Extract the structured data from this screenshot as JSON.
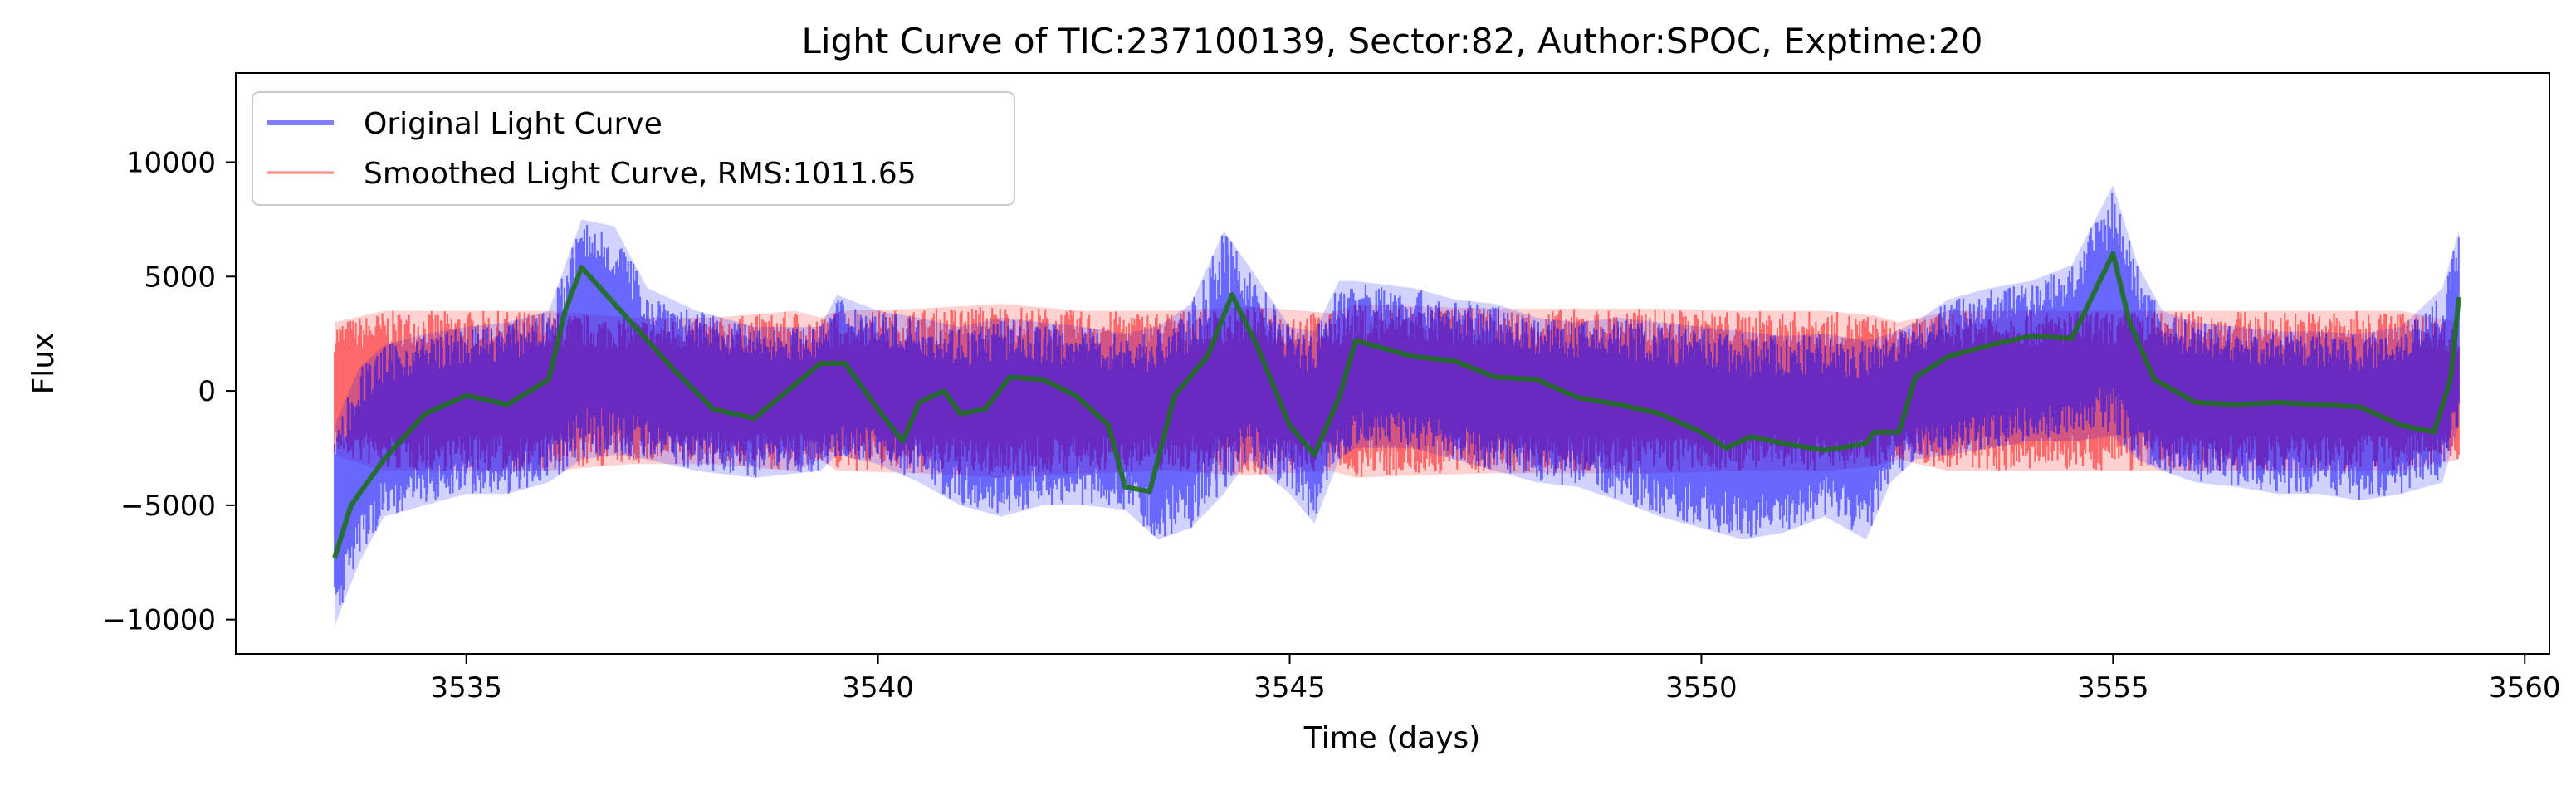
{
  "chart_data": {
    "type": "line",
    "title": "Light Curve of TIC:237100139, Sector:82, Author:SPOC, Exptime:20",
    "xlabel": "Time (days)",
    "ylabel": "Flux",
    "xlim": [
      3532.2,
      3560.3
    ],
    "ylim": [
      -11500,
      13900
    ],
    "x_ticks": [
      3535,
      3540,
      3545,
      3550,
      3555,
      3560
    ],
    "x_tick_labels": [
      "3535",
      "3540",
      "3545",
      "3550",
      "3555",
      "3560"
    ],
    "y_ticks": [
      -10000,
      -5000,
      0,
      5000,
      10000
    ],
    "y_tick_labels": [
      "−10000",
      "−5000",
      "0",
      "5000",
      "10000"
    ],
    "grid": false,
    "legend_position": "top-left",
    "colors": {
      "original": "#0000ff",
      "smoothed": "#ff0000",
      "trend": "#1f6f1f"
    },
    "series": [
      {
        "name": "Original Light Curve",
        "kind": "band",
        "x": [
          3533.4,
          3533.7,
          3534.0,
          3534.5,
          3535.0,
          3535.5,
          3536.0,
          3536.4,
          3536.8,
          3537.2,
          3537.8,
          3538.5,
          3539.3,
          3539.5,
          3540.0,
          3540.5,
          3541.0,
          3541.5,
          3542.0,
          3542.5,
          3543.0,
          3543.4,
          3543.8,
          3544.2,
          3544.5,
          3545.0,
          3545.3,
          3545.6,
          3545.8,
          3546.5,
          3547.0,
          3547.5,
          3548.0,
          3548.5,
          3549.0,
          3549.5,
          3550.0,
          3550.5,
          3551.0,
          3551.5,
          3552.0,
          3552.3,
          3552.6,
          3553.0,
          3553.5,
          3554.0,
          3554.5,
          3555.0,
          3555.3,
          3555.6,
          3556.0,
          3556.5,
          3557.0,
          3557.5,
          3558.0,
          3558.5,
          3559.0,
          3559.2
        ],
        "upper": [
          -1500,
          1000,
          2000,
          2500,
          2800,
          3000,
          3500,
          7500,
          7200,
          4500,
          3500,
          2800,
          2800,
          4200,
          3500,
          3200,
          2800,
          3200,
          3000,
          2800,
          2500,
          2800,
          3800,
          7000,
          5500,
          2800,
          2600,
          4800,
          4800,
          4500,
          4000,
          3800,
          3200,
          3000,
          3200,
          3000,
          2800,
          2600,
          2400,
          2500,
          2200,
          2500,
          3000,
          4000,
          4500,
          4800,
          5500,
          9000,
          5500,
          3500,
          3000,
          2800,
          2600,
          2600,
          2500,
          2800,
          4500,
          7000
        ],
        "lower": [
          -10300,
          -7500,
          -5500,
          -5000,
          -4500,
          -4500,
          -4000,
          -3000,
          -2800,
          -3000,
          -3500,
          -3800,
          -3500,
          -2800,
          -3200,
          -4000,
          -5000,
          -5500,
          -5000,
          -5000,
          -5200,
          -6500,
          -6000,
          -4500,
          -3000,
          -4500,
          -5800,
          -3000,
          -2500,
          -2500,
          -3000,
          -3500,
          -4000,
          -4200,
          -4800,
          -5500,
          -6000,
          -6500,
          -6200,
          -5500,
          -6500,
          -4000,
          -3000,
          -2800,
          -2500,
          -2200,
          -2200,
          -2000,
          -3000,
          -3500,
          -4000,
          -4200,
          -4500,
          -4500,
          -4800,
          -4500,
          -4000,
          -1500
        ]
      },
      {
        "name": "Smoothed Light Curve, RMS:1011.65",
        "kind": "band",
        "x": [
          3533.4,
          3534.0,
          3535.0,
          3536.0,
          3537.0,
          3538.0,
          3539.0,
          3539.3,
          3539.5,
          3540.5,
          3541.5,
          3542.5,
          3543.5,
          3544.5,
          3545.5,
          3545.8,
          3546.5,
          3547.5,
          3548.5,
          3549.5,
          3550.5,
          3551.5,
          3552.1,
          3552.4,
          3553.0,
          3554.0,
          3555.0,
          3555.5,
          3556.5,
          3557.5,
          3558.5,
          3559.2
        ],
        "upper": [
          3000,
          3500,
          3500,
          3500,
          3200,
          3200,
          3500,
          3200,
          3500,
          3600,
          3800,
          3500,
          3500,
          3700,
          3400,
          3800,
          3700,
          3600,
          3600,
          3600,
          3500,
          3500,
          3300,
          3000,
          3500,
          3500,
          3500,
          3500,
          3500,
          3500,
          3500,
          3000
        ],
        "lower": [
          -2800,
          -3500,
          -3500,
          -3500,
          -3200,
          -3200,
          -3500,
          -3000,
          -3500,
          -3600,
          -3800,
          -3600,
          -3500,
          -3700,
          -3500,
          -3800,
          -3700,
          -3600,
          -3600,
          -3600,
          -3500,
          -3500,
          -3300,
          -3000,
          -3500,
          -3500,
          -3500,
          -3500,
          -3500,
          -3500,
          -3500,
          -3000
        ]
      },
      {
        "name": "",
        "kind": "line",
        "x": [
          3533.4,
          3533.6,
          3534.0,
          3534.5,
          3535.0,
          3535.5,
          3536.0,
          3536.2,
          3536.4,
          3536.7,
          3537.0,
          3537.5,
          3538.0,
          3538.5,
          3539.0,
          3539.3,
          3539.6,
          3540.0,
          3540.3,
          3540.5,
          3540.8,
          3541.0,
          3541.3,
          3541.6,
          3542.0,
          3542.4,
          3542.8,
          3543.0,
          3543.3,
          3543.6,
          3544.0,
          3544.3,
          3544.6,
          3545.0,
          3545.3,
          3545.6,
          3545.8,
          3546.0,
          3546.5,
          3547.0,
          3547.5,
          3548.0,
          3548.5,
          3549.0,
          3549.5,
          3550.0,
          3550.3,
          3550.6,
          3551.0,
          3551.5,
          3552.0,
          3552.1,
          3552.4,
          3552.6,
          3553.0,
          3553.5,
          3554.0,
          3554.5,
          3555.0,
          3555.2,
          3555.5,
          3556.0,
          3556.5,
          3557.0,
          3557.5,
          3558.0,
          3558.5,
          3558.9,
          3559.1,
          3559.2
        ],
        "y": [
          -7300,
          -5000,
          -3000,
          -1000,
          -200,
          -600,
          500,
          3500,
          5400,
          4200,
          3000,
          1000,
          -800,
          -1200,
          300,
          1200,
          1200,
          -800,
          -2200,
          -500,
          0,
          -1000,
          -800,
          600,
          500,
          -200,
          -1500,
          -4200,
          -4400,
          -200,
          1500,
          4200,
          2000,
          -1500,
          -2800,
          -300,
          2200,
          2000,
          1500,
          1300,
          600,
          500,
          -300,
          -600,
          -1000,
          -1800,
          -2500,
          -2000,
          -2300,
          -2600,
          -2300,
          -1800,
          -1800,
          600,
          1500,
          2000,
          2400,
          2300,
          6000,
          3000,
          500,
          -500,
          -600,
          -500,
          -600,
          -700,
          -1500,
          -1800,
          500,
          4100
        ]
      }
    ]
  }
}
